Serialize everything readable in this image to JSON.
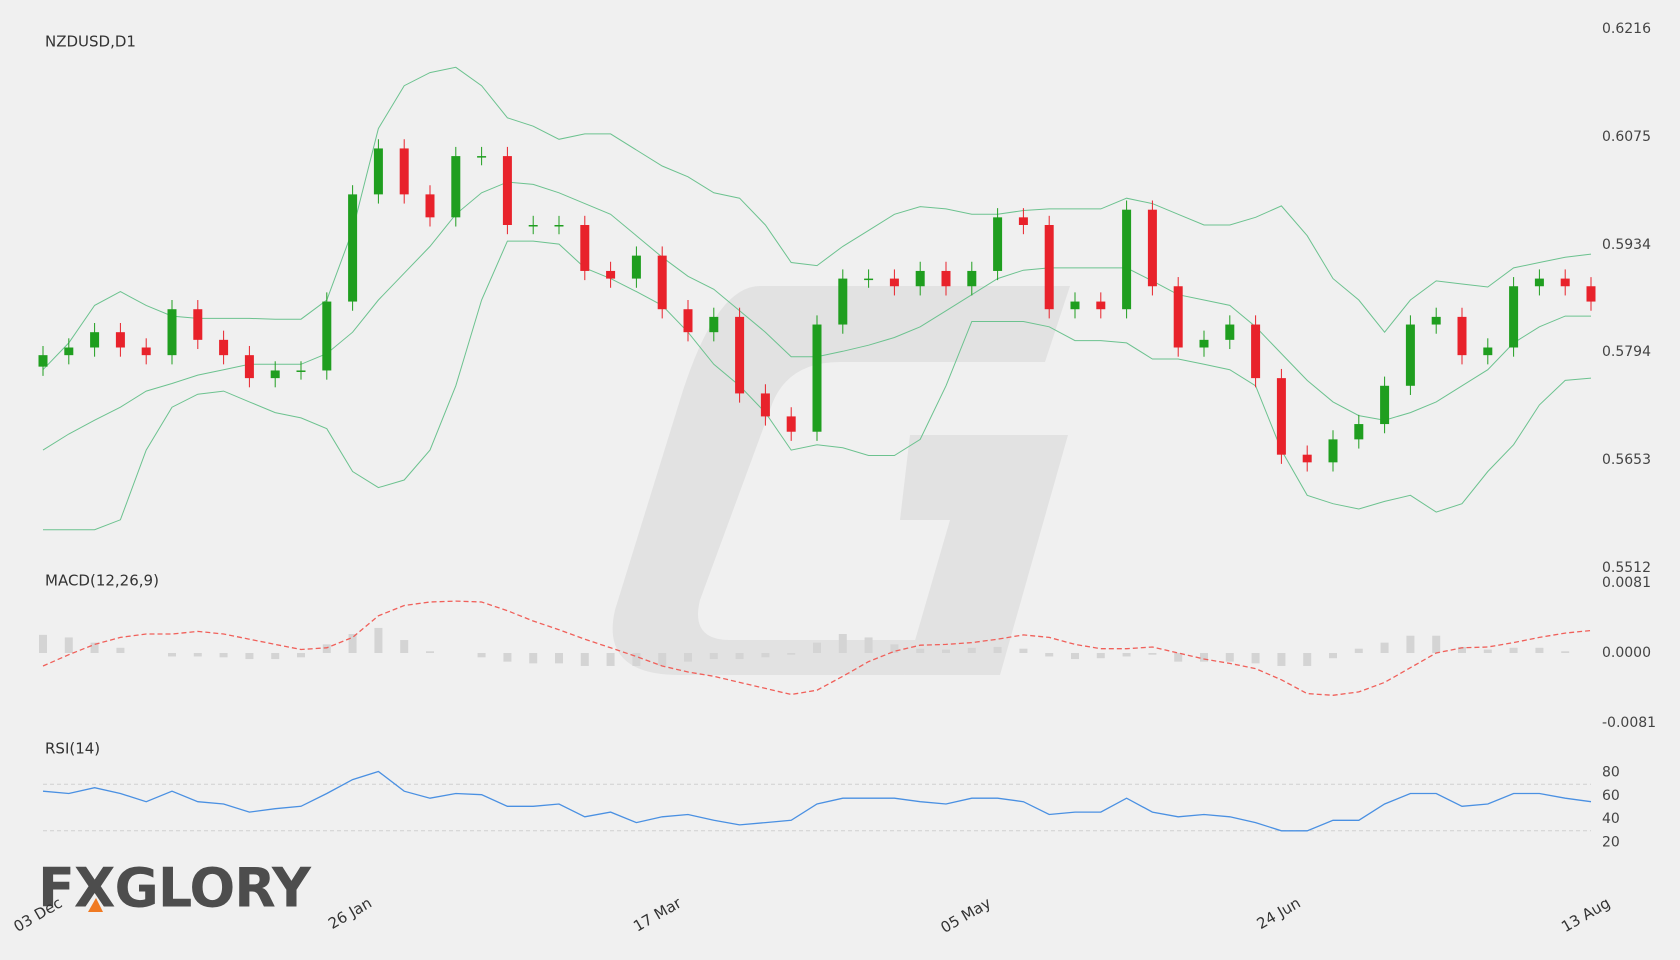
{
  "chart_data": [
    {
      "type": "candlestick",
      "title": "NZDUSD,D1",
      "categories": [
        "03 Dec",
        null,
        null,
        null,
        null,
        null,
        null,
        null,
        null,
        null,
        null,
        null,
        "26 Jan",
        null,
        null,
        null,
        null,
        null,
        null,
        null,
        null,
        null,
        null,
        null,
        "17 Mar",
        null,
        null,
        null,
        null,
        null,
        null,
        null,
        null,
        null,
        null,
        null,
        "05 May",
        null,
        null,
        null,
        null,
        null,
        null,
        null,
        null,
        null,
        null,
        null,
        "24 Jun",
        null,
        null,
        null,
        null,
        null,
        null,
        null,
        null,
        null,
        null,
        null,
        "13 Aug"
      ],
      "open": [
        0.5775,
        0.579,
        0.58,
        0.582,
        0.58,
        0.579,
        0.585,
        0.581,
        0.579,
        0.576,
        0.577,
        0.577,
        0.586,
        0.6,
        0.606,
        0.6,
        0.597,
        0.605,
        0.605,
        0.596,
        0.596,
        0.596,
        0.59,
        0.589,
        0.592,
        0.585,
        0.582,
        0.584,
        0.574,
        0.571,
        0.569,
        0.583,
        0.589,
        0.589,
        0.588,
        0.59,
        0.588,
        0.59,
        0.597,
        0.596,
        0.585,
        0.586,
        0.585,
        0.598,
        0.588,
        0.58,
        0.581,
        0.583,
        0.576,
        0.566,
        0.565,
        0.568,
        0.57,
        0.575,
        0.583,
        0.584,
        0.579,
        0.58,
        0.588,
        0.589,
        0.588
      ],
      "high": [
        0.5802,
        0.5812,
        0.5832,
        0.5832,
        0.5812,
        0.5862,
        0.5862,
        0.5822,
        0.5802,
        0.5782,
        0.5782,
        0.5872,
        0.6012,
        0.6072,
        0.6072,
        0.6012,
        0.6062,
        0.6062,
        0.6062,
        0.5972,
        0.5972,
        0.5972,
        0.5912,
        0.5932,
        0.5932,
        0.5862,
        0.5852,
        0.5852,
        0.5752,
        0.5722,
        0.5842,
        0.5902,
        0.5902,
        0.5902,
        0.5912,
        0.5912,
        0.5912,
        0.5982,
        0.5982,
        0.5972,
        0.5872,
        0.5872,
        0.5992,
        0.5992,
        0.5892,
        0.5822,
        0.5842,
        0.5842,
        0.5772,
        0.5672,
        0.5692,
        0.5712,
        0.5762,
        0.5842,
        0.5852,
        0.5852,
        0.5812,
        0.5892,
        0.5902,
        0.5902,
        0.5892
      ],
      "low": [
        0.5763,
        0.5778,
        0.5788,
        0.5788,
        0.5778,
        0.5778,
        0.5798,
        0.5778,
        0.5748,
        0.5748,
        0.5758,
        0.5758,
        0.5848,
        0.5988,
        0.5988,
        0.5958,
        0.5958,
        0.6038,
        0.5948,
        0.5948,
        0.5948,
        0.5888,
        0.5878,
        0.5878,
        0.5838,
        0.5808,
        0.5808,
        0.5728,
        0.5698,
        0.5678,
        0.5678,
        0.5818,
        0.5878,
        0.5868,
        0.5868,
        0.5868,
        0.5868,
        0.5888,
        0.5948,
        0.5838,
        0.5838,
        0.5838,
        0.5838,
        0.5868,
        0.5788,
        0.5788,
        0.5798,
        0.5748,
        0.5648,
        0.5638,
        0.5638,
        0.5668,
        0.5688,
        0.5738,
        0.5818,
        0.5778,
        0.5778,
        0.5788,
        0.5868,
        0.5868,
        0.5848
      ],
      "close": [
        0.579,
        0.58,
        0.582,
        0.58,
        0.579,
        0.585,
        0.581,
        0.579,
        0.576,
        0.577,
        0.577,
        0.586,
        0.6,
        0.606,
        0.6,
        0.597,
        0.605,
        0.605,
        0.596,
        0.596,
        0.596,
        0.59,
        0.589,
        0.592,
        0.585,
        0.582,
        0.584,
        0.574,
        0.571,
        0.569,
        0.583,
        0.589,
        0.589,
        0.588,
        0.59,
        0.588,
        0.59,
        0.597,
        0.596,
        0.585,
        0.586,
        0.585,
        0.598,
        0.588,
        0.58,
        0.581,
        0.583,
        0.576,
        0.566,
        0.565,
        0.568,
        0.57,
        0.575,
        0.583,
        0.584,
        0.579,
        0.58,
        0.588,
        0.589,
        0.588,
        0.586
      ],
      "up_color": "#1f9e1f",
      "down_color": "#e8222b",
      "bands": [
        {
          "color": "#6cc28f",
          "values": [
            0.5771,
            0.5806,
            0.5855,
            0.5873,
            0.5855,
            0.5841,
            0.5838,
            0.5838,
            0.5838,
            0.5837,
            0.5837,
            0.5862,
            0.5953,
            0.6086,
            0.6142,
            0.6159,
            0.6166,
            0.6142,
            0.61,
            0.6089,
            0.6072,
            0.6079,
            0.6079,
            0.6058,
            0.6037,
            0.6023,
            0.6002,
            0.5995,
            0.596,
            0.5911,
            0.5907,
            0.5932,
            0.5953,
            0.5974,
            0.5984,
            0.5981,
            0.5974,
            0.5974,
            0.5979,
            0.5981,
            0.5981,
            0.5981,
            0.5995,
            0.5988,
            0.5974,
            0.596,
            0.596,
            0.597,
            0.5985,
            0.5946,
            0.589,
            0.5862,
            0.582,
            0.5862,
            0.5887,
            0.5883,
            0.5879,
            0.5904,
            0.5911,
            0.5918,
            0.5922
          ]
        },
        {
          "color": "#6cc28f",
          "values": [
            0.5666,
            0.5687,
            0.5705,
            0.5722,
            0.5743,
            0.5753,
            0.5764,
            0.5771,
            0.5778,
            0.5778,
            0.5778,
            0.5792,
            0.582,
            0.5862,
            0.5897,
            0.5932,
            0.5974,
            0.6002,
            0.6016,
            0.6013,
            0.6002,
            0.5988,
            0.5974,
            0.5946,
            0.5918,
            0.5893,
            0.5876,
            0.5848,
            0.582,
            0.5788,
            0.5788,
            0.5795,
            0.5803,
            0.5813,
            0.5827,
            0.5848,
            0.5869,
            0.589,
            0.5901,
            0.5904,
            0.5904,
            0.5904,
            0.5904,
            0.5887,
            0.5869,
            0.5862,
            0.5855,
            0.5827,
            0.5792,
            0.5757,
            0.5729,
            0.5711,
            0.5705,
            0.5715,
            0.5729,
            0.575,
            0.5771,
            0.5806,
            0.5827,
            0.5841,
            0.5841
          ]
        },
        {
          "color": "#6cc28f",
          "values": [
            0.5562,
            0.5562,
            0.5562,
            0.5575,
            0.5666,
            0.5722,
            0.5739,
            0.5743,
            0.5729,
            0.5715,
            0.5708,
            0.5694,
            0.5638,
            0.5617,
            0.5627,
            0.5666,
            0.575,
            0.5862,
            0.5939,
            0.5939,
            0.5935,
            0.5904,
            0.589,
            0.5873,
            0.5855,
            0.582,
            0.5778,
            0.575,
            0.5715,
            0.5666,
            0.5673,
            0.5669,
            0.5659,
            0.5659,
            0.568,
            0.575,
            0.5834,
            0.5834,
            0.5834,
            0.5827,
            0.5809,
            0.5809,
            0.5806,
            0.5785,
            0.5785,
            0.5778,
            0.5771,
            0.575,
            0.5666,
            0.5607,
            0.5596,
            0.5589,
            0.5599,
            0.5607,
            0.5585,
            0.5596,
            0.5638,
            0.5673,
            0.5725,
            0.5757,
            0.576
          ]
        }
      ],
      "ylim": [
        0.5512,
        0.6216
      ],
      "yticks": [
        0.5512,
        0.5653,
        0.5794,
        0.5934,
        0.6075,
        0.6216
      ]
    },
    {
      "type": "macd",
      "title": "MACD(12,26,9)",
      "histogram": {
        "color": "#d4d4d4",
        "values": [
          0.0021,
          0.0018,
          0.0012,
          0.0006,
          0,
          -0.0004,
          -0.0004,
          -0.0005,
          -0.0007,
          -0.0007,
          -0.0005,
          0.001,
          0.0022,
          0.0029,
          0.0015,
          0.0002,
          0,
          -0.0005,
          -0.001,
          -0.0012,
          -0.0012,
          -0.0015,
          -0.0015,
          -0.0015,
          -0.0015,
          -0.001,
          -0.0007,
          -0.0007,
          -0.0005,
          -0.0002,
          0.0012,
          0.0022,
          0.0018,
          0.001,
          0.0005,
          0.0004,
          0.0006,
          0.0007,
          0.0005,
          -0.0004,
          -0.0007,
          -0.0006,
          -0.0004,
          -0.0002,
          -0.001,
          -0.001,
          -0.001,
          -0.0012,
          -0.0015,
          -0.0015,
          -0.0006,
          0.0005,
          0.0012,
          0.002,
          0.002,
          0.0007,
          0.0004,
          0.0006,
          0.0006,
          0.0002,
          0
        ]
      },
      "signal": {
        "color": "#f0605a",
        "values": [
          -0.0015,
          -0.0002,
          0.001,
          0.0018,
          0.0022,
          0.0022,
          0.0025,
          0.0022,
          0.0016,
          0.001,
          0.0004,
          0.0006,
          0.0018,
          0.0043,
          0.0055,
          0.0059,
          0.006,
          0.0059,
          0.0049,
          0.0037,
          0.0027,
          0.0016,
          0.0006,
          -0.0004,
          -0.0015,
          -0.0022,
          -0.0027,
          -0.0034,
          -0.0041,
          -0.0048,
          -0.0043,
          -0.0027,
          -0.001,
          0.0002,
          0.0009,
          0.001,
          0.0012,
          0.0016,
          0.0021,
          0.0018,
          0.001,
          0.0005,
          0.0005,
          0.0007,
          0,
          -0.0007,
          -0.0012,
          -0.0018,
          -0.0031,
          -0.0047,
          -0.0049,
          -0.0045,
          -0.0034,
          -0.0017,
          0,
          0.0006,
          0.0007,
          0.0012,
          0.0018,
          0.0023,
          0.0026
        ]
      },
      "ylim": [
        -0.0081,
        0.0081
      ],
      "yticks": [
        -0.0081,
        {
          "value": 0,
          "label": "0.0000"
        },
        0.0081
      ]
    },
    {
      "type": "line",
      "title": "RSI(14)",
      "color": "#4a90e2",
      "values": [
        64,
        62,
        67,
        62,
        55,
        64,
        55,
        53,
        46,
        49,
        51,
        62,
        74,
        81,
        64,
        58,
        62,
        61,
        51,
        51,
        53,
        42,
        46,
        37,
        42,
        44,
        39,
        35,
        37,
        39,
        53,
        58,
        58,
        58,
        55,
        53,
        58,
        58,
        55,
        44,
        46,
        46,
        58,
        46,
        42,
        44,
        42,
        37,
        30,
        30,
        39,
        39,
        53,
        62,
        62,
        51,
        53,
        62,
        62,
        58,
        55
      ],
      "levels": [
        30,
        70
      ],
      "ylim": [
        10,
        90
      ],
      "yticks": [
        20,
        40,
        60,
        80
      ]
    }
  ],
  "logo": "FXGLORY"
}
